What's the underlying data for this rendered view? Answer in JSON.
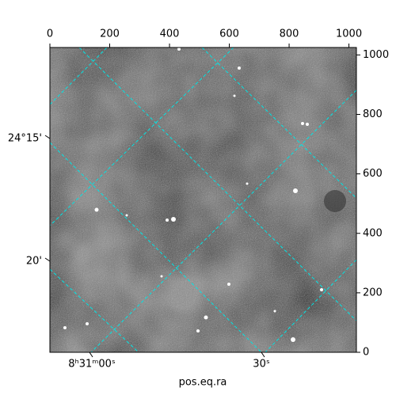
{
  "chart_data": {
    "type": "image",
    "xlabel": "pos.eq.ra",
    "xlim": [
      0,
      1025
    ],
    "ylim": [
      0,
      1025
    ],
    "xticks": [
      0,
      200,
      400,
      600,
      800,
      1000
    ],
    "yticks": [
      0,
      200,
      400,
      600,
      800,
      1000
    ],
    "ra_labels": [
      "8ʰ31ᵐ00ˢ",
      "30ˢ"
    ],
    "dec_labels": [
      "24°15'",
      "20'"
    ],
    "grid_color": "#00e5e5"
  }
}
